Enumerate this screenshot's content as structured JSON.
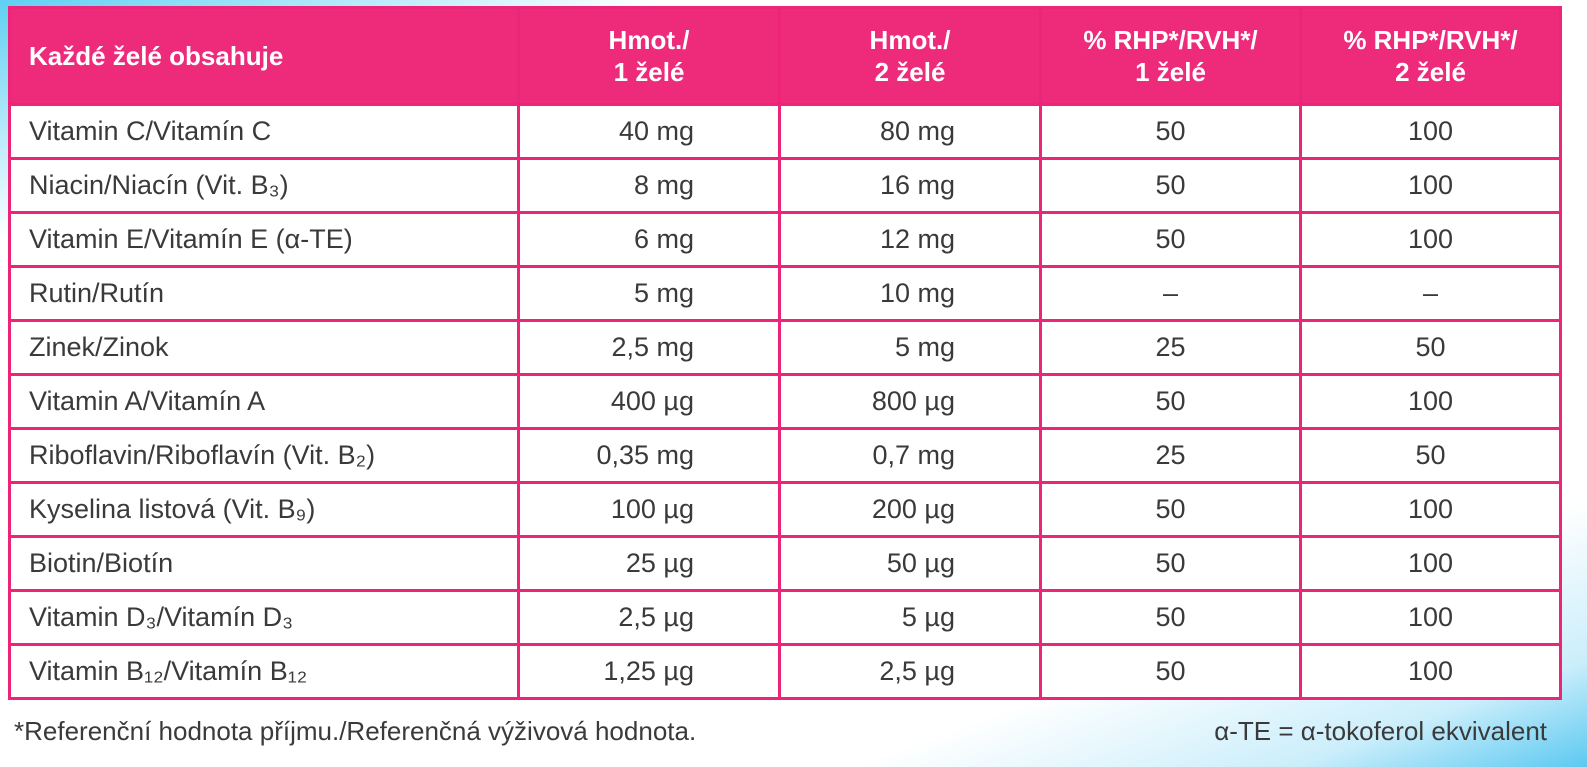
{
  "table": {
    "header": [
      [
        "Každé želé obsahuje"
      ],
      [
        "Hmot./",
        "1 želé"
      ],
      [
        "Hmot./",
        "2 želé"
      ],
      [
        "% RHP*/RVH*/",
        "1 želé"
      ],
      [
        "% RHP*/RVH*/",
        "2 želé"
      ]
    ],
    "rows": [
      [
        "Vitamin C/Vitamín C",
        "40 mg",
        "80 mg",
        "50",
        "100"
      ],
      [
        "Niacin/Niacín (Vit. B₃)",
        "8 mg",
        "16 mg",
        "50",
        "100"
      ],
      [
        "Vitamin E/Vitamín E (α-TE)",
        "6 mg",
        "12 mg",
        "50",
        "100"
      ],
      [
        "Rutin/Rutín",
        "5 mg",
        "10 mg",
        "–",
        "–"
      ],
      [
        "Zinek/Zinok",
        "2,5 mg",
        "5 mg",
        "25",
        "50"
      ],
      [
        "Vitamin A/Vitamín A",
        "400 µg",
        "800 µg",
        "50",
        "100"
      ],
      [
        "Riboflavin/Riboflavín (Vit. B₂)",
        "0,35 mg",
        "0,7 mg",
        "25",
        "50"
      ],
      [
        "Kyselina listová (Vit. B₉)",
        "100 µg",
        "200 µg",
        "50",
        "100"
      ],
      [
        "Biotin/Biotín",
        "25 µg",
        "50 µg",
        "50",
        "100"
      ],
      [
        "Vitamin D₃/Vitamín D₃",
        "2,5 µg",
        "5 µg",
        "50",
        "100"
      ],
      [
        "Vitamin B₁₂/Vitamín B₁₂",
        "1,25 µg",
        "2,5 µg",
        "50",
        "100"
      ]
    ]
  },
  "footer": {
    "left": "*Referenční hodnota příjmu./Referenčná výživová hodnota.",
    "right": "α-TE = α-tokoferol ekvivalent"
  }
}
